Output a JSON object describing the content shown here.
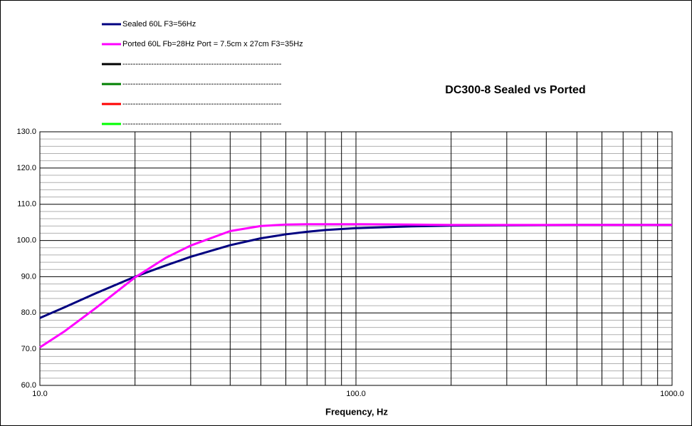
{
  "chart_data": {
    "type": "line",
    "title": "DC300-8 Sealed vs Ported",
    "x_label": "Frequency, Hz",
    "x_scale": "log",
    "x": [
      10,
      12,
      15,
      20,
      25,
      30,
      40,
      50,
      60,
      70,
      80,
      100,
      150,
      200,
      300,
      500,
      1000
    ],
    "series": [
      {
        "name": "Sealed 60L F3=56Hz",
        "color": "#000080",
        "values": [
          78.6,
          81.6,
          85.4,
          90.0,
          93.1,
          95.5,
          98.7,
          100.6,
          101.7,
          102.4,
          102.9,
          103.4,
          103.9,
          104.1,
          104.2,
          104.3,
          104.3
        ]
      },
      {
        "name": "Ported 60L Fb=28Hz Port = 7.5cm x 27cm F3=35Hz",
        "color": "#ff00ff",
        "values": [
          70.5,
          75.0,
          81.3,
          89.8,
          95.2,
          98.6,
          102.6,
          104.0,
          104.4,
          104.5,
          104.5,
          104.5,
          104.4,
          104.3,
          104.3,
          104.3,
          104.3
        ]
      },
      {
        "name": "-------------------------------------------------------------",
        "color": "#000000",
        "values": [
          null,
          null,
          null,
          null,
          null,
          null,
          null,
          null,
          null,
          null,
          null,
          null,
          null,
          null,
          null,
          null,
          null
        ]
      },
      {
        "name": "-------------------------------------------------------------",
        "color": "#008000",
        "values": [
          null,
          null,
          null,
          null,
          null,
          null,
          null,
          null,
          null,
          null,
          null,
          null,
          null,
          null,
          null,
          null,
          null
        ]
      },
      {
        "name": "-------------------------------------------------------------",
        "color": "#ff0000",
        "values": [
          null,
          null,
          null,
          null,
          null,
          null,
          null,
          null,
          null,
          null,
          null,
          null,
          null,
          null,
          null,
          null,
          null
        ]
      },
      {
        "name": "-------------------------------------------------------------",
        "color": "#00ff00",
        "values": [
          null,
          null,
          null,
          null,
          null,
          null,
          null,
          null,
          null,
          null,
          null,
          null,
          null,
          null,
          null,
          null,
          null
        ]
      }
    ],
    "xlim": [
      10,
      1000
    ],
    "ylim": [
      60,
      130
    ],
    "xticks": [
      {
        "value": 10,
        "label": "10.0"
      },
      {
        "value": 20,
        "label": null
      },
      {
        "value": 30,
        "label": null
      },
      {
        "value": 40,
        "label": null
      },
      {
        "value": 50,
        "label": null
      },
      {
        "value": 60,
        "label": null
      },
      {
        "value": 70,
        "label": null
      },
      {
        "value": 80,
        "label": null
      },
      {
        "value": 90,
        "label": null
      },
      {
        "value": 100,
        "label": "100.0"
      },
      {
        "value": 200,
        "label": null
      },
      {
        "value": 300,
        "label": null
      },
      {
        "value": 400,
        "label": null
      },
      {
        "value": 500,
        "label": null
      },
      {
        "value": 600,
        "label": null
      },
      {
        "value": 700,
        "label": null
      },
      {
        "value": 800,
        "label": null
      },
      {
        "value": 900,
        "label": null
      },
      {
        "value": 1000,
        "label": "1000.0"
      }
    ],
    "yticks": [
      {
        "value": 60,
        "label": "60.0"
      },
      {
        "value": 62,
        "label": null
      },
      {
        "value": 64,
        "label": null
      },
      {
        "value": 66,
        "label": null
      },
      {
        "value": 68,
        "label": null
      },
      {
        "value": 70,
        "label": "70.0"
      },
      {
        "value": 72,
        "label": null
      },
      {
        "value": 74,
        "label": null
      },
      {
        "value": 76,
        "label": null
      },
      {
        "value": 78,
        "label": null
      },
      {
        "value": 80,
        "label": "80.0"
      },
      {
        "value": 82,
        "label": null
      },
      {
        "value": 84,
        "label": null
      },
      {
        "value": 86,
        "label": null
      },
      {
        "value": 88,
        "label": null
      },
      {
        "value": 90,
        "label": "90.0"
      },
      {
        "value": 92,
        "label": null
      },
      {
        "value": 94,
        "label": null
      },
      {
        "value": 96,
        "label": null
      },
      {
        "value": 98,
        "label": null
      },
      {
        "value": 100,
        "label": "100.0"
      },
      {
        "value": 102,
        "label": null
      },
      {
        "value": 104,
        "label": null
      },
      {
        "value": 106,
        "label": null
      },
      {
        "value": 108,
        "label": null
      },
      {
        "value": 110,
        "label": "110.0"
      },
      {
        "value": 112,
        "label": null
      },
      {
        "value": 114,
        "label": null
      },
      {
        "value": 116,
        "label": null
      },
      {
        "value": 118,
        "label": null
      },
      {
        "value": 120,
        "label": "120.0"
      },
      {
        "value": 122,
        "label": null
      },
      {
        "value": 124,
        "label": null
      },
      {
        "value": 126,
        "label": null
      },
      {
        "value": 128,
        "label": null
      },
      {
        "value": 130,
        "label": "130.0"
      }
    ],
    "grid": true
  }
}
